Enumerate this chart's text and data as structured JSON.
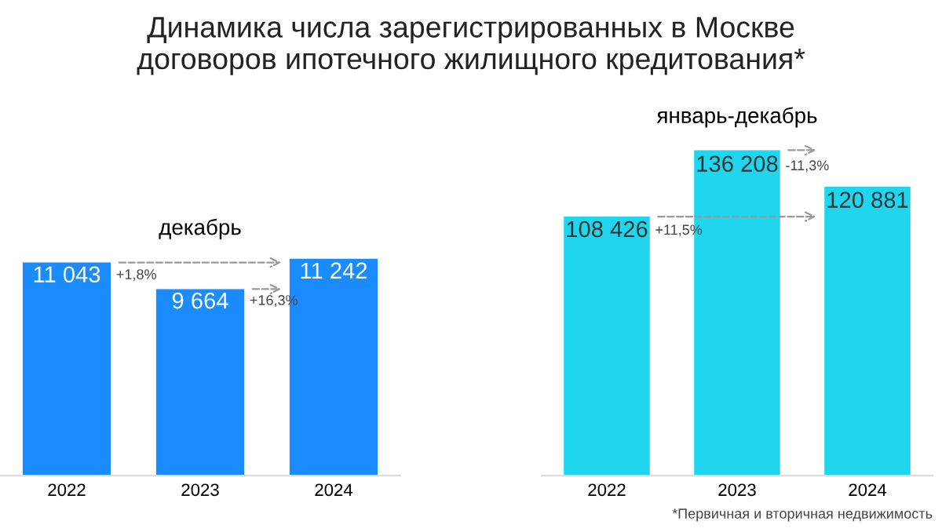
{
  "chart_data": [
    {
      "type": "bar",
      "title": "Динамика числа зарегистрированных в Москве\nдоговоров ипотечного жилищного кредитования*",
      "subtitle": "декабрь",
      "categories": [
        "2022",
        "2023",
        "2024"
      ],
      "values": [
        11043,
        9664,
        11242
      ],
      "value_labels": [
        "11 043",
        "9 664",
        "11 242"
      ],
      "color": "#1a8cff",
      "annotations": [
        "+1,8%",
        "+16,3%"
      ]
    },
    {
      "type": "bar",
      "subtitle": "январь-декабрь",
      "categories": [
        "2022",
        "2023",
        "2024"
      ],
      "values": [
        108426,
        136208,
        120881
      ],
      "value_labels": [
        "108 426",
        "136 208",
        "120 881"
      ],
      "color": "#1fd6ee",
      "annotations": [
        "+11,5%",
        "-11,3%",
        "*Первичная и вторичная недвижимость"
      ]
    }
  ]
}
